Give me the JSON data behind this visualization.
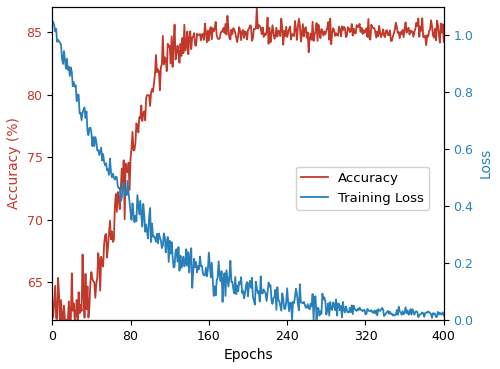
{
  "xlabel": "Epochs",
  "ylabel_left": "Accuracy (%)",
  "ylabel_right": "Loss",
  "xlim": [
    0,
    400
  ],
  "ylim_acc": [
    62,
    87
  ],
  "ylim_loss": [
    0.0,
    1.1
  ],
  "yticks_acc": [
    65,
    70,
    75,
    80,
    85
  ],
  "yticks_loss": [
    0.0,
    0.2,
    0.4,
    0.6,
    0.8,
    1.0
  ],
  "xticks": [
    0,
    80,
    160,
    240,
    320,
    400
  ],
  "acc_color": "#c0392b",
  "loss_color": "#2980b9",
  "legend_labels": [
    "Accuracy",
    "Training Loss"
  ],
  "figsize": [
    5.0,
    3.69
  ],
  "dpi": 100,
  "n_epochs": 401,
  "seed": 42
}
